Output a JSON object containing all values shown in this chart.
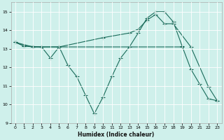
{
  "xlabel": "Humidex (Indice chaleur)",
  "bg_color": "#cff0eb",
  "line_color": "#1a6b5a",
  "grid_color": "#ffffff",
  "xlim": [
    -0.5,
    23.5
  ],
  "ylim": [
    9,
    15.5
  ],
  "xticks": [
    0,
    1,
    2,
    3,
    4,
    5,
    6,
    7,
    8,
    9,
    10,
    11,
    12,
    13,
    14,
    15,
    16,
    17,
    18,
    19,
    20,
    21,
    22,
    23
  ],
  "yticks": [
    9,
    10,
    11,
    12,
    13,
    14,
    15
  ],
  "line1_x": [
    0,
    1,
    2,
    3,
    5,
    19
  ],
  "line1_y": [
    13.35,
    13.15,
    13.1,
    13.1,
    13.1,
    13.1
  ],
  "line2_x": [
    0,
    1,
    3,
    4,
    5,
    6,
    7,
    8,
    9,
    10,
    11,
    12,
    13,
    14,
    15,
    16,
    17,
    18,
    19,
    20,
    21,
    22,
    23
  ],
  "line2_y": [
    13.35,
    13.15,
    13.1,
    12.5,
    13.1,
    12.1,
    11.5,
    10.5,
    9.5,
    10.4,
    11.5,
    12.5,
    13.1,
    13.85,
    14.65,
    15.0,
    15.0,
    14.45,
    13.15,
    11.9,
    11.1,
    10.3,
    10.2
  ],
  "line3_x": [
    0,
    2,
    5,
    10,
    13,
    14,
    15,
    16,
    17,
    18,
    20,
    22,
    23
  ],
  "line3_y": [
    13.35,
    13.1,
    13.1,
    13.6,
    13.85,
    14.05,
    14.55,
    14.85,
    14.35,
    14.35,
    13.1,
    10.95,
    10.2
  ],
  "marker": "+",
  "markersize": 4,
  "linewidth": 0.8
}
